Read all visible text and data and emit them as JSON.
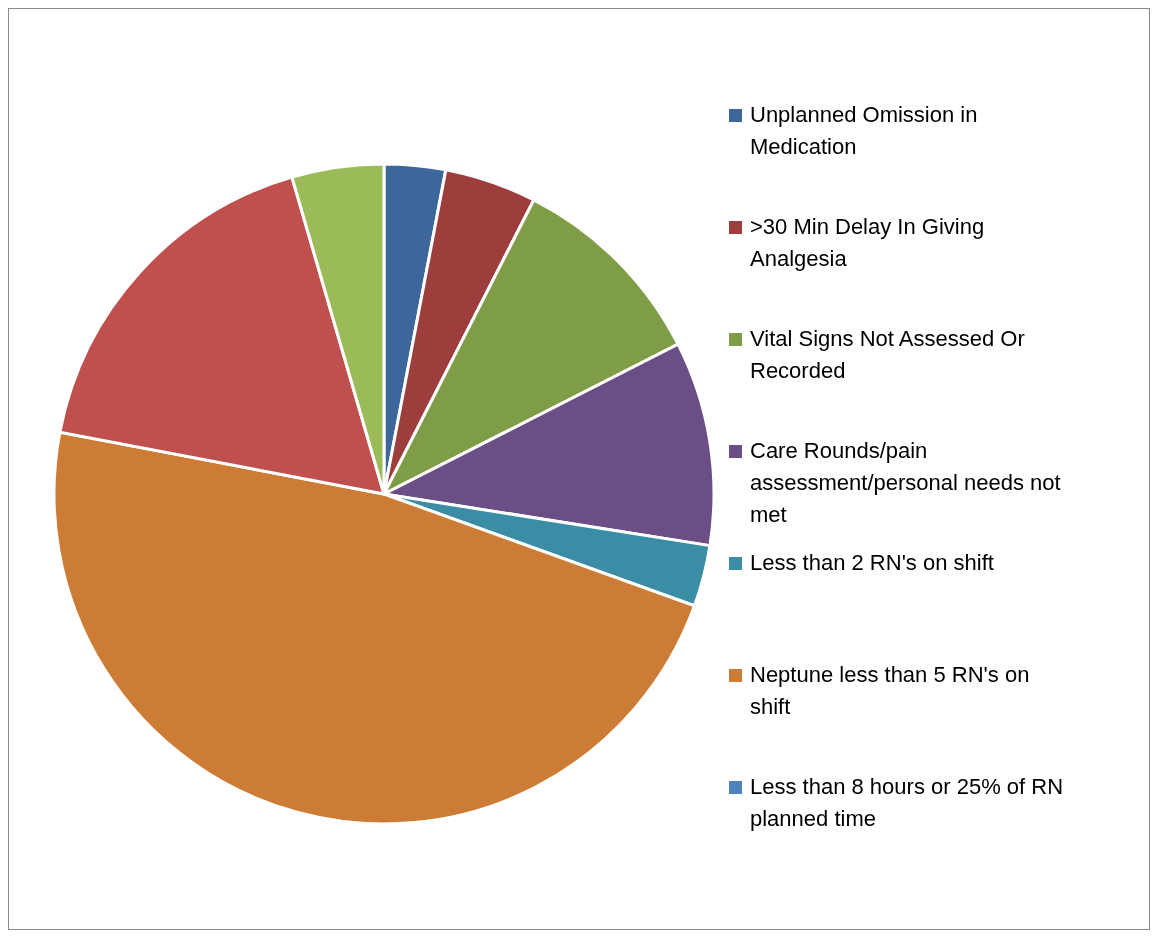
{
  "chart_data": {
    "type": "pie",
    "legend": "right",
    "categories": [
      "Unplanned Omission in Medication",
      ">30 Min Delay In Giving Analgesia",
      "Vital Signs Not Assessed Or Recorded",
      "Care Rounds/pain assessment/personal needs not met",
      "Less than 2 RN's on shift",
      "Neptune less than 5 RN's on shift",
      "Less than 8 hours or 25% of RN planned time",
      null,
      null
    ],
    "values": [
      3,
      4.5,
      10,
      10,
      3,
      47.5,
      0,
      17.5,
      4.5
    ],
    "colors": [
      "#3d679b",
      "#9e3e3c",
      "#7f9c47",
      "#6a4e85",
      "#3a8da4",
      "#cd7c36",
      "#4f81bd",
      "#c0504d",
      "#9bbb59"
    ]
  }
}
